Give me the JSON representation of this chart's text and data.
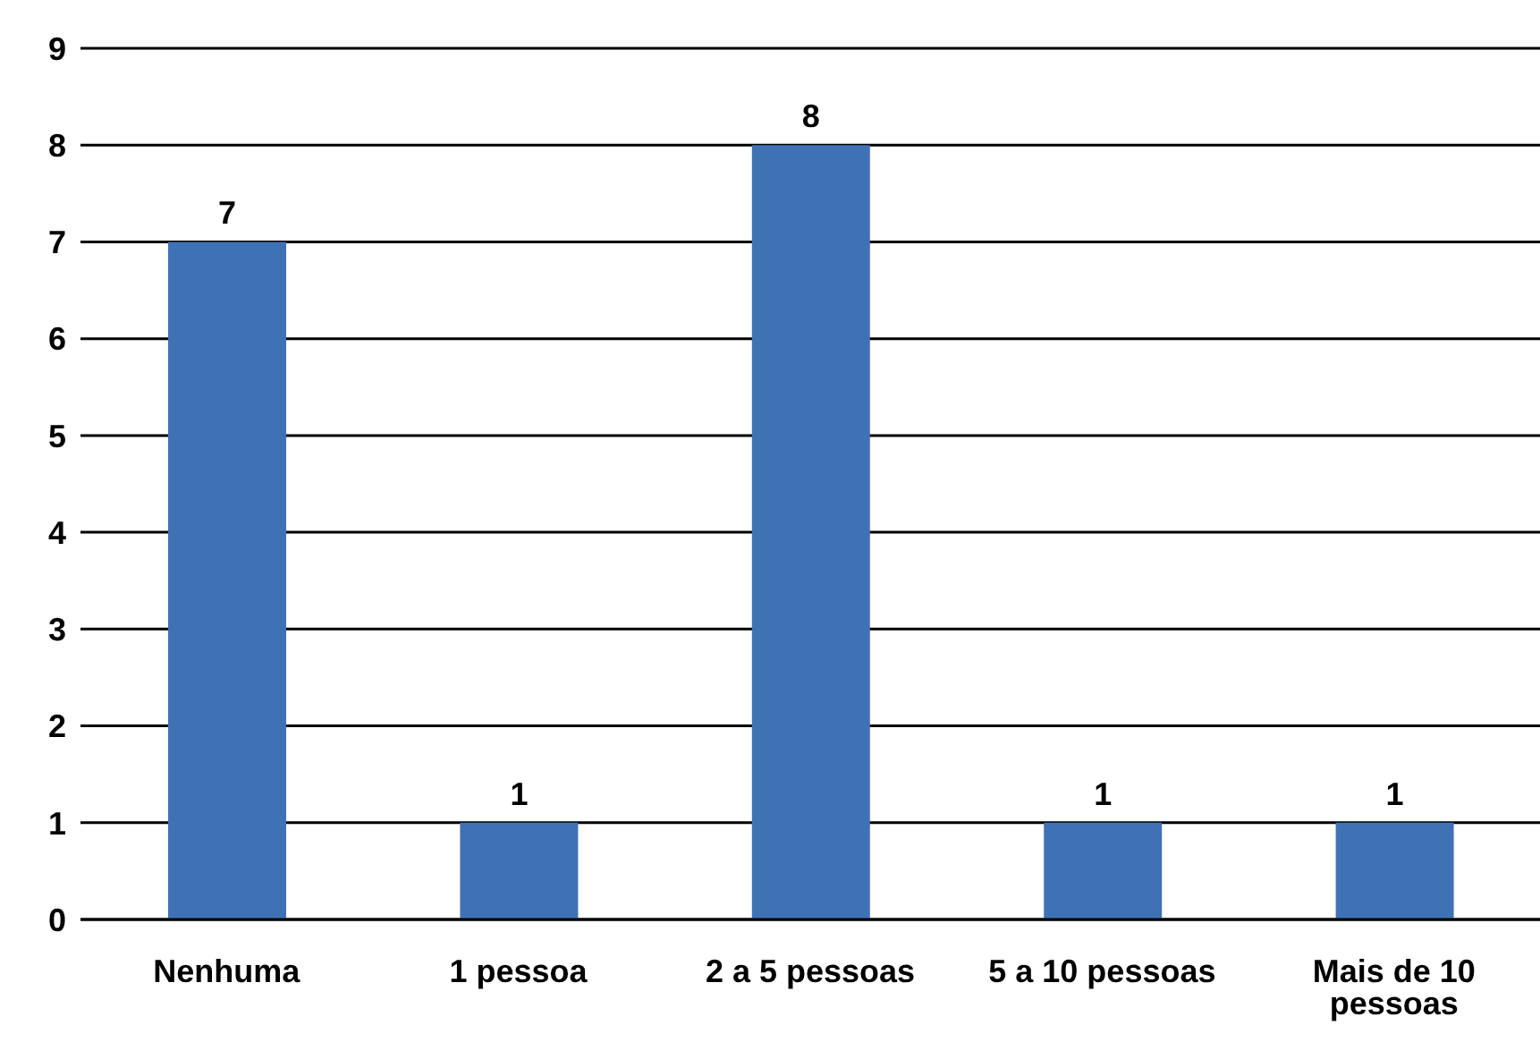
{
  "chart_data": {
    "type": "bar",
    "categories": [
      "Nenhuma",
      "1 pessoa",
      "2 a 5 pessoas",
      "5 a 10 pessoas",
      "Mais de 10 pessoas"
    ],
    "values": [
      7,
      1,
      8,
      1,
      1
    ],
    "color": "#3f72b5",
    "ylim": [
      0,
      9
    ],
    "yticks": [
      0,
      1,
      2,
      3,
      4,
      5,
      6,
      7,
      8,
      9
    ],
    "grid": "y",
    "data_labels": true
  }
}
